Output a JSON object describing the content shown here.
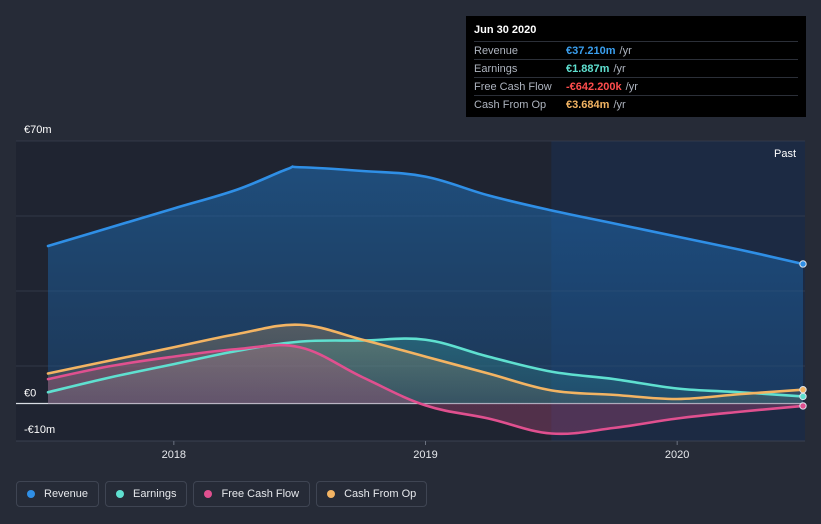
{
  "tooltip": {
    "date": "Jun 30 2020",
    "rows": [
      {
        "name": "Revenue",
        "value": "€37.210m",
        "unit": "/yr",
        "color": "#3a9fef"
      },
      {
        "name": "Earnings",
        "value": "€1.887m",
        "unit": "/yr",
        "color": "#5fe0d0"
      },
      {
        "name": "Free Cash Flow",
        "value": "-€642.200k",
        "unit": "/yr",
        "color": "#ff4d4d"
      },
      {
        "name": "Cash From Op",
        "value": "€3.684m",
        "unit": "/yr",
        "color": "#f3b463"
      }
    ]
  },
  "chart_data": {
    "type": "area",
    "title": "",
    "xlabel": "",
    "ylabel": "",
    "x_range": [
      2017.5,
      2020.5
    ],
    "ylim": [
      -10,
      70
    ],
    "y_tick_labels": [
      "€70m",
      "€0",
      "-€10m"
    ],
    "x_ticks": [
      2018,
      2019,
      2020
    ],
    "x_tick_labels": [
      "2018",
      "2019",
      "2020"
    ],
    "past_label": "Past",
    "past_region_start": 2019.5,
    "series": [
      {
        "name": "Revenue",
        "color": "#2f8fe6",
        "x": [
          2017.5,
          2017.75,
          2018.0,
          2018.25,
          2018.45,
          2018.5,
          2018.75,
          2019.0,
          2019.25,
          2019.5,
          2019.75,
          2020.0,
          2020.25,
          2020.5
        ],
        "values": [
          42,
          47,
          52,
          57,
          62.5,
          63,
          62,
          60.5,
          55.5,
          51.5,
          48,
          44.5,
          41,
          37.21
        ]
      },
      {
        "name": "Earnings",
        "color": "#5fe0d0",
        "x": [
          2017.5,
          2017.75,
          2018.0,
          2018.25,
          2018.5,
          2018.75,
          2019.0,
          2019.25,
          2019.5,
          2019.75,
          2020.0,
          2020.25,
          2020.5
        ],
        "values": [
          3,
          7,
          10.5,
          14,
          16.5,
          16.8,
          17,
          12.5,
          8.5,
          6.5,
          4,
          3,
          1.887
        ]
      },
      {
        "name": "Free Cash Flow",
        "color": "#e0508f",
        "x": [
          2017.5,
          2017.75,
          2018.0,
          2018.25,
          2018.5,
          2018.75,
          2019.0,
          2019.25,
          2019.5,
          2019.75,
          2020.0,
          2020.25,
          2020.5
        ],
        "values": [
          6.5,
          10,
          12.5,
          14.5,
          15,
          7,
          -0.5,
          -4,
          -8,
          -6.5,
          -4,
          -2.2,
          -0.6422
        ]
      },
      {
        "name": "Cash From Op",
        "color": "#f3b463",
        "x": [
          2017.5,
          2017.75,
          2018.0,
          2018.25,
          2018.5,
          2018.75,
          2019.0,
          2019.25,
          2019.5,
          2019.75,
          2020.0,
          2020.25,
          2020.5
        ],
        "values": [
          8,
          11.5,
          15,
          18.5,
          21,
          17,
          12.5,
          8,
          3.5,
          2.3,
          1.2,
          2.5,
          3.684
        ]
      }
    ]
  }
}
